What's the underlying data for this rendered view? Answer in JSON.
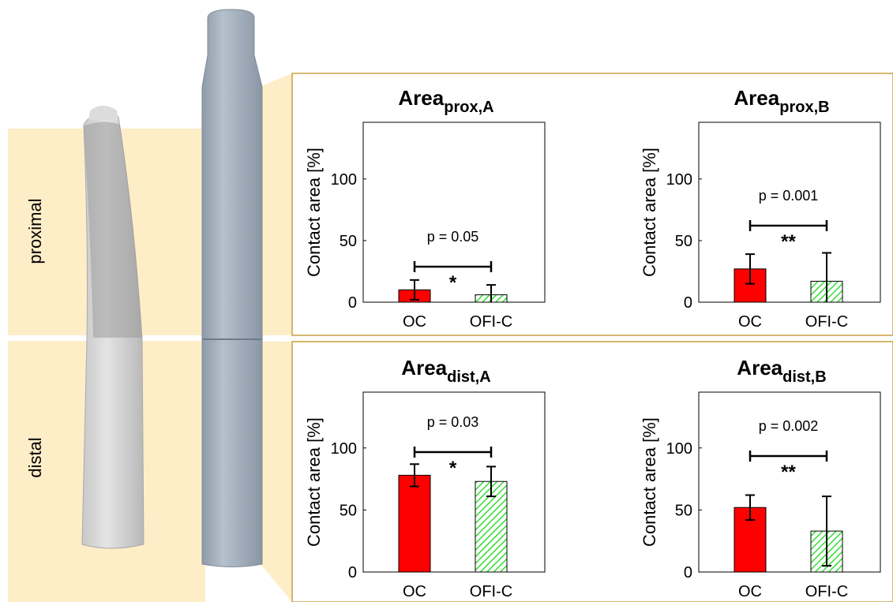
{
  "labels": {
    "proximal": "proximal",
    "distal": "distal"
  },
  "chart_data": [
    {
      "type": "bar",
      "title": "Area",
      "title_subscript": "prox,A",
      "y_label": "Contact area [%]",
      "categories": [
        "OC",
        "OFI-C"
      ],
      "values": [
        10,
        6
      ],
      "errors": [
        8,
        8
      ],
      "colors": [
        "#ff0000",
        "#33dd33"
      ],
      "ylim": [
        0,
        146
      ],
      "yticks": [
        0,
        50,
        100
      ],
      "p_value": "p = 0.05",
      "significance": "*"
    },
    {
      "type": "bar",
      "title": "Area",
      "title_subscript": "prox,B",
      "y_label": "Contact area [%]",
      "categories": [
        "OC",
        "OFI-C"
      ],
      "values": [
        27,
        17
      ],
      "errors": [
        12,
        23
      ],
      "colors": [
        "#ff0000",
        "#33dd33"
      ],
      "ylim": [
        0,
        146
      ],
      "yticks": [
        0,
        50,
        100
      ],
      "p_value": "p = 0.001",
      "significance": "**"
    },
    {
      "type": "bar",
      "title": "Area",
      "title_subscript": "dist,A",
      "y_label": "Contact area [%]",
      "categories": [
        "OC",
        "OFI-C"
      ],
      "values": [
        78,
        73
      ],
      "errors": [
        9,
        12
      ],
      "colors": [
        "#ff0000",
        "#33dd33"
      ],
      "ylim": [
        0,
        145
      ],
      "yticks": [
        0,
        50,
        100
      ],
      "p_value": "p = 0.03",
      "significance": "*"
    },
    {
      "type": "bar",
      "title": "Area",
      "title_subscript": "dist,B",
      "y_label": "Contact area [%]",
      "categories": [
        "OC",
        "OFI-C"
      ],
      "values": [
        52,
        33
      ],
      "errors": [
        10,
        28
      ],
      "colors": [
        "#ff0000",
        "#33dd33"
      ],
      "ylim": [
        0,
        145
      ],
      "yticks": [
        0,
        50,
        100
      ],
      "p_value": "p = 0.002",
      "significance": "**"
    }
  ]
}
